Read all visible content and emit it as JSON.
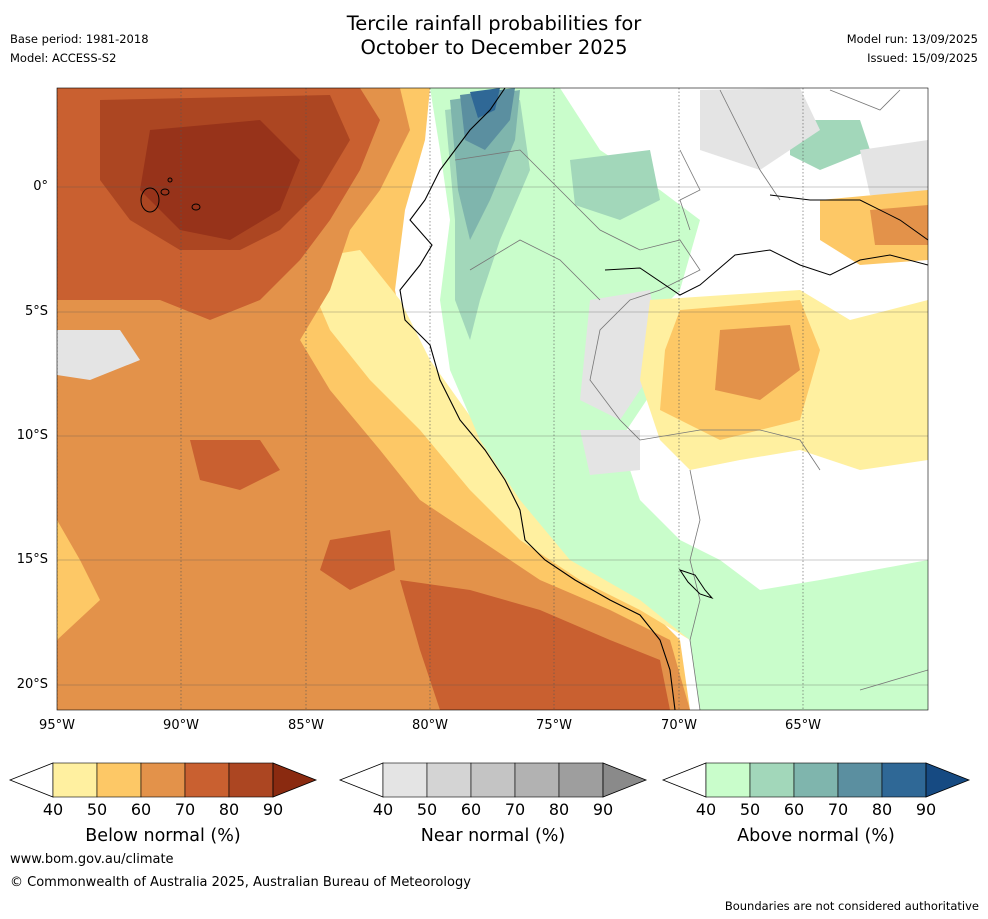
{
  "header": {
    "title_line1": "Tercile rainfall probabilities for",
    "title_line2": "October to December 2025",
    "base_period": "Base period: 1981-2018",
    "model": "Model: ACCESS-S2",
    "model_run": "Model run: 13/09/2025",
    "issued": "Issued: 15/09/2025"
  },
  "map": {
    "lat_labels": [
      "0°",
      "5°S",
      "10°S",
      "15°S",
      "20°S"
    ],
    "lon_labels": [
      "95°W",
      "90°W",
      "85°W",
      "80°W",
      "75°W",
      "70°W",
      "65°W"
    ]
  },
  "colorbars": [
    {
      "name": "Below normal (%)",
      "ticks": [
        "40",
        "50",
        "60",
        "70",
        "80",
        "90"
      ],
      "colors": [
        "#fff0a0",
        "#fdc866",
        "#e3924a",
        "#c96030",
        "#ac4622",
        "#8a2a10"
      ]
    },
    {
      "name": "Near normal (%)",
      "ticks": [
        "40",
        "50",
        "60",
        "70",
        "80",
        "90"
      ],
      "colors": [
        "#e4e4e4",
        "#d4d4d4",
        "#c4c4c4",
        "#b2b2b2",
        "#9e9e9e",
        "#8a8a8a"
      ]
    },
    {
      "name": "Above normal (%)",
      "ticks": [
        "40",
        "50",
        "60",
        "70",
        "80",
        "90"
      ],
      "colors": [
        "#c9fdcb",
        "#a2d7ba",
        "#7fb5ad",
        "#5b8fa0",
        "#2f6896",
        "#164a82"
      ]
    }
  ],
  "footer": {
    "url": "www.bom.gov.au/climate",
    "copyright": "© Commonwealth of Australia 2025, Australian Bureau of Meteorology",
    "disclaimer": "Boundaries are not considered authoritative"
  }
}
